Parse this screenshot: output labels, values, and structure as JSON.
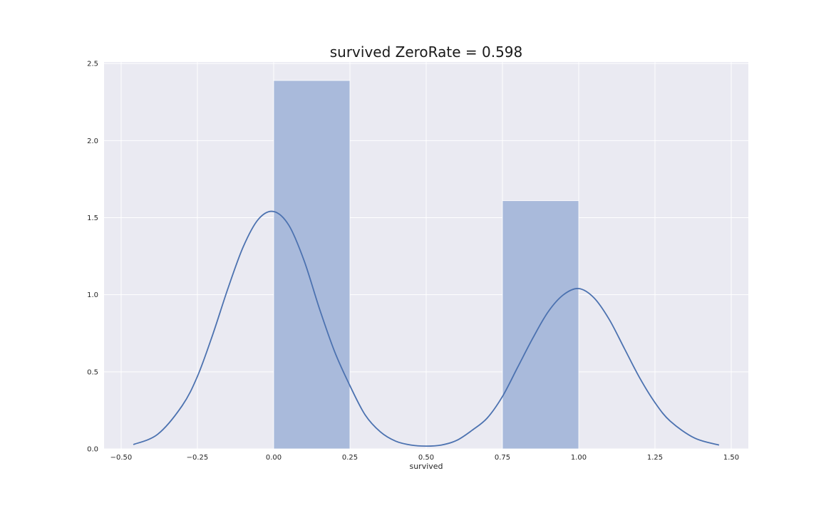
{
  "chart_data": {
    "type": "bar",
    "title": "survived ZeroRate = 0.598",
    "xlabel": "survived",
    "ylabel": "",
    "xlim": [
      -0.556,
      1.556
    ],
    "ylim": [
      0,
      2.51
    ],
    "xticks": [
      -0.5,
      -0.25,
      0.0,
      0.25,
      0.5,
      0.75,
      1.0,
      1.25,
      1.5
    ],
    "xtick_labels": [
      "−0.50",
      "−0.25",
      "0.00",
      "0.25",
      "0.50",
      "0.75",
      "1.00",
      "1.25",
      "1.50"
    ],
    "yticks": [
      0,
      0.5,
      1.0,
      1.5,
      2.0,
      2.5
    ],
    "ytick_labels": [
      "0.0",
      "0.5",
      "1.0",
      "1.5",
      "2.0",
      "2.5"
    ],
    "grid": true,
    "bars": [
      {
        "x0": 0.0,
        "x1": 0.25,
        "value": 2.39
      },
      {
        "x0": 0.75,
        "x1": 1.0,
        "value": 1.61
      }
    ],
    "kde": {
      "x": [
        -0.46,
        -0.38,
        -0.3,
        -0.25,
        -0.2,
        -0.15,
        -0.1,
        -0.05,
        0.0,
        0.05,
        0.1,
        0.15,
        0.2,
        0.25,
        0.3,
        0.35,
        0.4,
        0.45,
        0.5,
        0.55,
        0.6,
        0.65,
        0.7,
        0.75,
        0.8,
        0.85,
        0.9,
        0.95,
        1.0,
        1.05,
        1.1,
        1.15,
        1.2,
        1.25,
        1.3,
        1.38,
        1.46
      ],
      "y": [
        0.028,
        0.095,
        0.28,
        0.47,
        0.74,
        1.04,
        1.31,
        1.49,
        1.54,
        1.45,
        1.22,
        0.91,
        0.63,
        0.41,
        0.22,
        0.11,
        0.05,
        0.025,
        0.018,
        0.025,
        0.055,
        0.12,
        0.2,
        0.34,
        0.53,
        0.72,
        0.89,
        1.0,
        1.04,
        0.98,
        0.84,
        0.65,
        0.46,
        0.3,
        0.18,
        0.07,
        0.025
      ]
    },
    "colors": {
      "background": "#eaeaf2",
      "grid": "#ffffff",
      "bar": "#a9badb",
      "line": "#4c72b0"
    }
  }
}
